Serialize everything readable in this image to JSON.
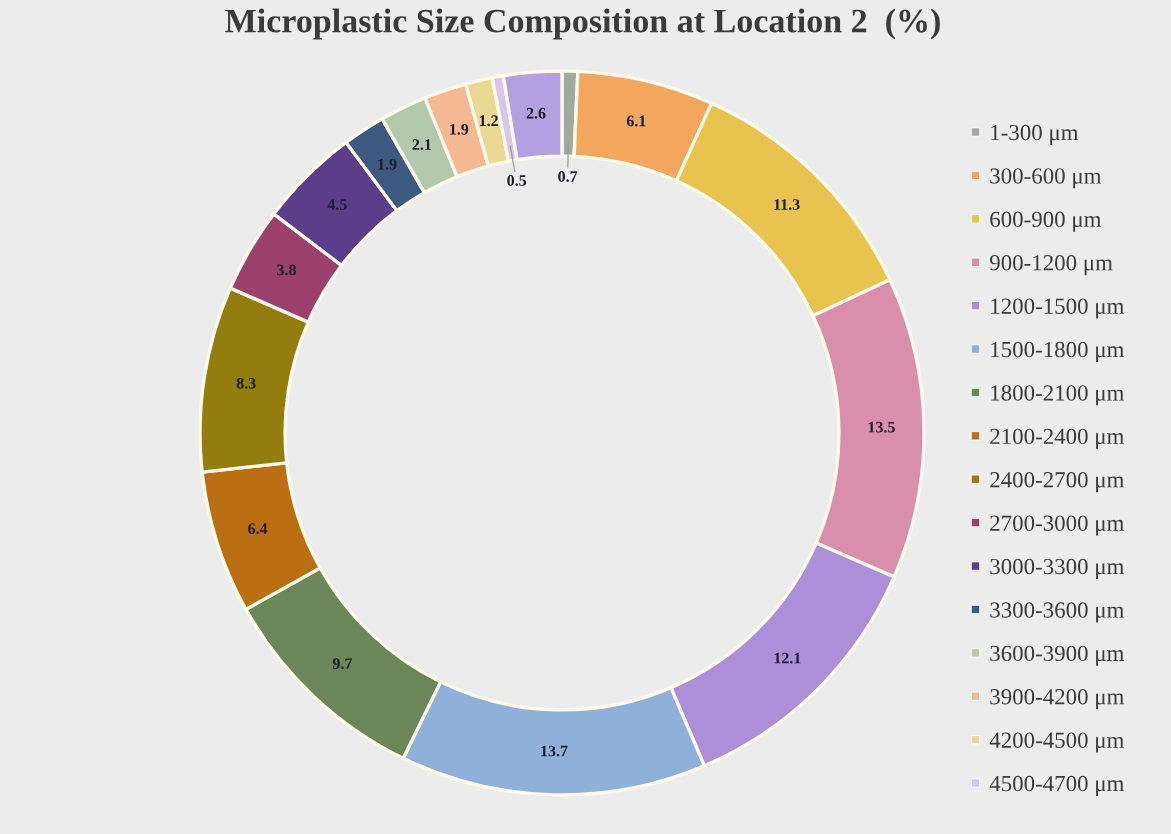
{
  "chart_data": {
    "type": "donut",
    "title": "Microplastic Size Composition at Location 2  (%)",
    "categories": [
      "1-300 μm",
      "300-600 μm",
      "600-900 μm",
      "900-1200 μm",
      "1200-1500 μm",
      "1500-1800 μm",
      "1800-2100 μm",
      "2100-2400 μm",
      "2400-2700 μm",
      "2700-3000 μm",
      "3000-3300 μm",
      "3300-3600 μm",
      "3600-3900 μm",
      "3900-4200 μm",
      "4200-4500 μm",
      "4500-4700 μm",
      null
    ],
    "values": [
      0.7,
      6.1,
      11.3,
      13.5,
      12.1,
      13.7,
      9.7,
      6.4,
      8.3,
      3.8,
      4.5,
      1.9,
      2.1,
      1.9,
      1.2,
      0.5,
      2.6
    ],
    "colors": [
      "#9fab9c",
      "#f2a65e",
      "#e9c350",
      "#d98eac",
      "#ac8fd8",
      "#8fb1d9",
      "#6b8659",
      "#b96f12",
      "#927d0e",
      "#9c416e",
      "#5b3d8a",
      "#3c5a80",
      "#b3c9ad",
      "#f4b993",
      "#ead893",
      "#d9c6ea",
      "#b49fe0"
    ],
    "data_labels": true,
    "legend": "right"
  }
}
